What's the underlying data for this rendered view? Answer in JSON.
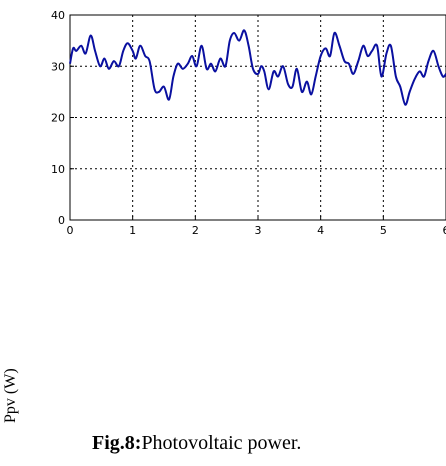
{
  "chart_data": {
    "type": "line",
    "xlabel": "",
    "ylabel": "Ppv (W)",
    "xlim": [
      0,
      6
    ],
    "ylim": [
      0,
      40
    ],
    "xticks": [
      0,
      1,
      2,
      3,
      4,
      5,
      6
    ],
    "yticks": [
      0,
      10,
      20,
      30,
      40
    ],
    "grid": true,
    "series": [
      {
        "color": "#0a10a0",
        "x": [
          0,
          0.05,
          0.1,
          0.18,
          0.25,
          0.33,
          0.4,
          0.48,
          0.55,
          0.62,
          0.7,
          0.78,
          0.85,
          0.92,
          1.0,
          1.05,
          1.12,
          1.2,
          1.27,
          1.35,
          1.42,
          1.5,
          1.58,
          1.65,
          1.72,
          1.8,
          1.88,
          1.95,
          2.02,
          2.1,
          2.18,
          2.25,
          2.32,
          2.4,
          2.48,
          2.55,
          2.62,
          2.7,
          2.78,
          2.85,
          2.92,
          3.0,
          3.05,
          3.1,
          3.17,
          3.25,
          3.32,
          3.4,
          3.48,
          3.55,
          3.62,
          3.7,
          3.78,
          3.85,
          3.92,
          4.0,
          4.08,
          4.15,
          4.22,
          4.3,
          4.38,
          4.45,
          4.52,
          4.6,
          4.68,
          4.75,
          4.82,
          4.9,
          4.97,
          5.05,
          5.12,
          5.2,
          5.27,
          5.35,
          5.42,
          5.5,
          5.58,
          5.65,
          5.72,
          5.8,
          5.88,
          5.95,
          6.0
        ],
        "y": [
          30.5,
          33.5,
          33,
          34,
          32.5,
          36,
          33,
          30,
          31.5,
          29.5,
          31,
          30,
          33,
          34.5,
          33,
          31.5,
          34,
          32,
          31,
          25.5,
          25,
          26,
          23.5,
          28,
          30.5,
          29.5,
          30.5,
          32,
          30,
          34,
          29.5,
          30.5,
          29,
          31.5,
          30,
          35,
          36.5,
          35,
          37,
          34,
          29.5,
          28.5,
          30,
          29,
          25.5,
          29,
          28,
          30,
          26.5,
          26,
          29.5,
          25,
          27,
          24.5,
          28,
          32,
          33.5,
          32,
          36.5,
          34,
          31,
          30.5,
          28.5,
          31,
          34,
          32,
          33,
          34,
          28,
          32.5,
          34,
          28,
          26,
          22.5,
          25,
          27.5,
          29,
          28,
          31,
          33,
          30,
          28,
          28.5
        ]
      }
    ]
  },
  "caption": {
    "label": "Fig.8:",
    "text": "Photovoltaic  power."
  }
}
